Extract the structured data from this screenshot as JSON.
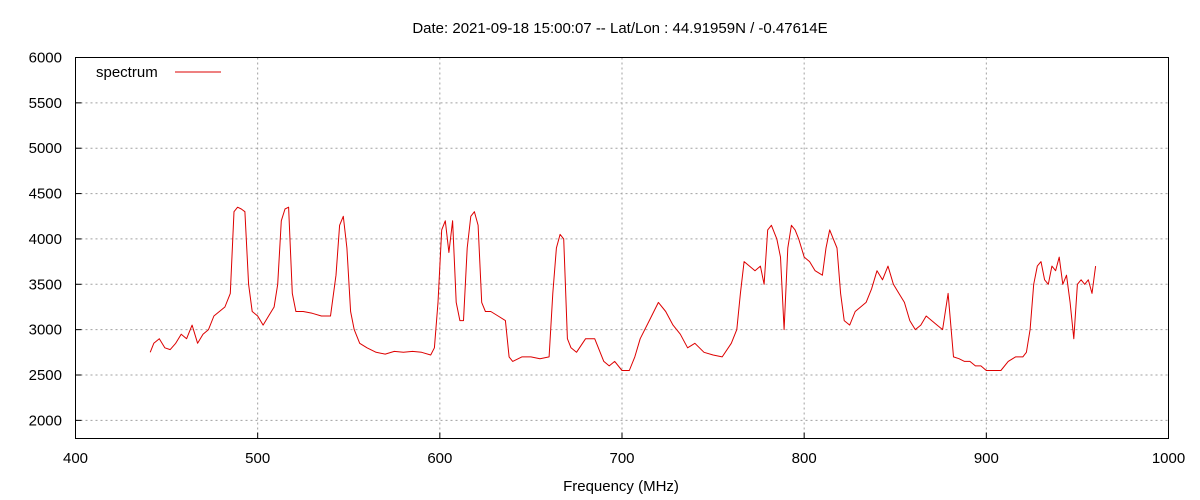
{
  "chart_data": {
    "type": "line",
    "title": "Date: 2021-09-18 15:00:07  --  Lat/Lon : 44.91959N / -0.47614E",
    "xlabel": "Frequency (MHz)",
    "ylabel": "",
    "xlim": [
      400,
      1000
    ],
    "ylim": [
      1800,
      6000
    ],
    "xticks": [
      400,
      500,
      600,
      700,
      800,
      900,
      1000
    ],
    "yticks": [
      2000,
      2500,
      3000,
      3500,
      4000,
      4500,
      5000,
      5500,
      6000
    ],
    "grid": true,
    "legend_placement": "top-left",
    "series": [
      {
        "name": "spectrum",
        "color": "#dd0000",
        "x": [
          441,
          443,
          446,
          449,
          452,
          455,
          458,
          461,
          464,
          467,
          470,
          473,
          476,
          479,
          482,
          485,
          487,
          489,
          491,
          493,
          495,
          497,
          500,
          503,
          506,
          509,
          511,
          513,
          515,
          517,
          519,
          521,
          525,
          530,
          535,
          540,
          543,
          545,
          547,
          549,
          551,
          553,
          556,
          560,
          565,
          570,
          575,
          580,
          585,
          590,
          595,
          597,
          599,
          601,
          603,
          605,
          607,
          609,
          611,
          613,
          615,
          617,
          619,
          621,
          623,
          625,
          628,
          632,
          636,
          638,
          640,
          645,
          650,
          655,
          660,
          662,
          664,
          666,
          668,
          670,
          672,
          675,
          680,
          685,
          690,
          693,
          696,
          700,
          704,
          707,
          710,
          715,
          720,
          724,
          728,
          732,
          736,
          740,
          745,
          750,
          755,
          760,
          763,
          765,
          767,
          770,
          773,
          776,
          778,
          780,
          782,
          785,
          787,
          789,
          791,
          793,
          795,
          797,
          800,
          803,
          806,
          810,
          812,
          814,
          816,
          818,
          820,
          822,
          825,
          828,
          831,
          834,
          837,
          840,
          843,
          846,
          849,
          852,
          855,
          858,
          861,
          864,
          867,
          870,
          873,
          876,
          879,
          882,
          885,
          888,
          891,
          894,
          897,
          900,
          904,
          908,
          912,
          916,
          920,
          922,
          924,
          926,
          928,
          930,
          932,
          934,
          936,
          938,
          940,
          942,
          944,
          946,
          948,
          950,
          952,
          954,
          956,
          958,
          960
        ],
        "y": [
          2750,
          2850,
          2900,
          2800,
          2780,
          2850,
          2950,
          2900,
          3050,
          2850,
          2950,
          3000,
          3150,
          3200,
          3250,
          3400,
          4300,
          4350,
          4330,
          4300,
          3500,
          3200,
          3150,
          3050,
          3150,
          3250,
          3500,
          4200,
          4330,
          4350,
          3400,
          3200,
          3200,
          3180,
          3150,
          3150,
          3600,
          4150,
          4250,
          3900,
          3200,
          3000,
          2850,
          2800,
          2750,
          2730,
          2760,
          2750,
          2760,
          2750,
          2720,
          2800,
          3300,
          4100,
          4200,
          3850,
          4200,
          3300,
          3100,
          3100,
          3900,
          4250,
          4300,
          4150,
          3300,
          3200,
          3200,
          3150,
          3100,
          2700,
          2650,
          2700,
          2700,
          2680,
          2700,
          3400,
          3900,
          4050,
          4000,
          2900,
          2800,
          2750,
          2900,
          2900,
          2650,
          2600,
          2650,
          2550,
          2550,
          2700,
          2900,
          3100,
          3300,
          3200,
          3050,
          2950,
          2800,
          2850,
          2750,
          2720,
          2700,
          2850,
          3000,
          3400,
          3750,
          3700,
          3650,
          3700,
          3500,
          4100,
          4150,
          4000,
          3800,
          3000,
          3900,
          4150,
          4100,
          4000,
          3800,
          3750,
          3650,
          3600,
          3900,
          4100,
          4000,
          3900,
          3400,
          3100,
          3050,
          3200,
          3250,
          3300,
          3450,
          3650,
          3550,
          3700,
          3500,
          3400,
          3300,
          3100,
          3000,
          3050,
          3150,
          3100,
          3050,
          3000,
          3400,
          2700,
          2680,
          2650,
          2650,
          2600,
          2600,
          2550,
          2550,
          2550,
          2650,
          2700,
          2700,
          2750,
          3000,
          3500,
          3700,
          3750,
          3550,
          3500,
          3700,
          3650,
          3800,
          3500,
          3600,
          3300,
          2900,
          3500,
          3550,
          3500,
          3550,
          3400,
          3700
        ]
      }
    ]
  }
}
